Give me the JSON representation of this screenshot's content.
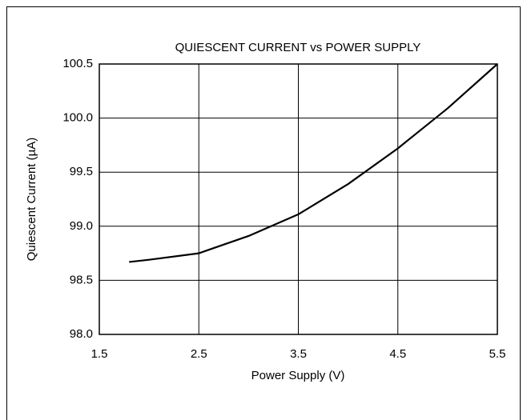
{
  "chart_data": {
    "type": "line",
    "title": "QUIESCENT CURRENT vs POWER SUPPLY",
    "x_label": "Power Supply (V)",
    "y_label": "Quiescent Current (µA)",
    "x": [
      1.8,
      2.0,
      2.5,
      3.0,
      3.5,
      4.0,
      4.5,
      5.0,
      5.5
    ],
    "series": [
      {
        "name": "Quiescent Current",
        "color": "#000000",
        "values": [
          98.67,
          98.69,
          98.75,
          98.91,
          99.11,
          99.39,
          99.72,
          100.09,
          100.5
        ]
      }
    ],
    "xlim": [
      1.5,
      5.5
    ],
    "xticks": [
      1.5,
      2.5,
      3.5,
      4.5,
      5.5
    ],
    "ylim": [
      98,
      100.5
    ],
    "yticks": [
      {
        "value": 98,
        "label": "98.0"
      },
      98.5,
      {
        "value": 99,
        "label": "99.0"
      },
      99.5,
      {
        "value": 100,
        "label": "100.0"
      },
      100.5
    ],
    "grid": true
  }
}
